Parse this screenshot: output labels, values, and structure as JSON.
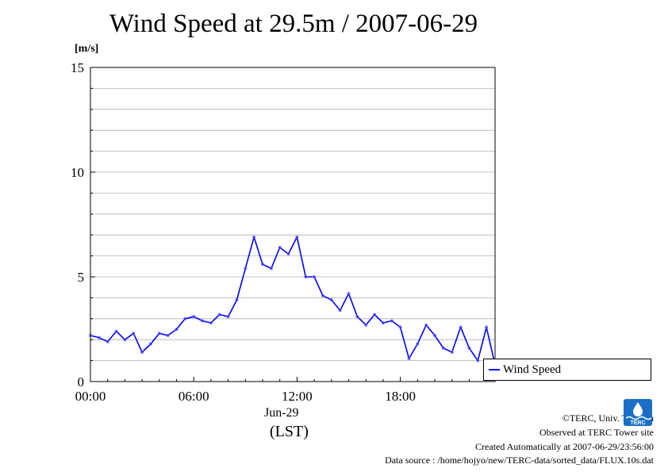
{
  "title": "Wind Speed at 29.5m / 2007-06-29",
  "chart_data": {
    "type": "line",
    "title": "Wind Speed at 29.5m / 2007-06-29",
    "ylabel": "[m/s]",
    "xlabel": "(LST)",
    "x_category_label": "Jun-29",
    "ylim": [
      0,
      15
    ],
    "xlim_hours": [
      0,
      23.5
    ],
    "yticks": [
      "0",
      "5",
      "10",
      "15"
    ],
    "xticks": [
      "00:00",
      "06:00",
      "12:00",
      "18:00"
    ],
    "grid": true,
    "legend_position": "right",
    "series": [
      {
        "name": "Wind Speed",
        "color": "#0000ff",
        "x": [
          0,
          0.5,
          1,
          1.5,
          2,
          2.5,
          3,
          3.5,
          4,
          4.5,
          5,
          5.5,
          6,
          6.5,
          7,
          7.5,
          8,
          8.5,
          9,
          9.5,
          10,
          10.5,
          11,
          11.5,
          12,
          12.5,
          13,
          13.5,
          14,
          14.5,
          15,
          15.5,
          16,
          16.5,
          17,
          17.5,
          18,
          18.5,
          19,
          19.5,
          20,
          20.5,
          21,
          21.5,
          22,
          22.5,
          23,
          23.5
        ],
        "values": [
          2.2,
          2.1,
          1.9,
          2.4,
          2.0,
          2.3,
          1.4,
          1.8,
          2.3,
          2.2,
          2.5,
          3.0,
          3.1,
          2.9,
          2.8,
          3.2,
          3.1,
          3.9,
          5.4,
          6.9,
          5.6,
          5.4,
          6.4,
          6.1,
          6.9,
          5.0,
          5.0,
          4.1,
          3.9,
          3.4,
          4.2,
          3.1,
          2.7,
          3.2,
          2.8,
          2.9,
          2.6,
          1.1,
          1.8,
          2.7,
          2.2,
          1.6,
          1.4,
          2.6,
          1.6,
          1.0,
          2.6,
          0.8
        ]
      }
    ]
  },
  "legend": {
    "label": "Wind Speed"
  },
  "footer": {
    "copyright": "©TERC, Univ. Tsukuba",
    "observed": "Observed at TERC Tower site",
    "created": "Created Automatically at 2007-06-29/23:56:00",
    "source": "Data source : /home/hojyo/new/TERC-data/sorted_data/FLUX.10s.dat"
  },
  "logo": {
    "text": "TERC",
    "color": "#1a6fc4"
  }
}
